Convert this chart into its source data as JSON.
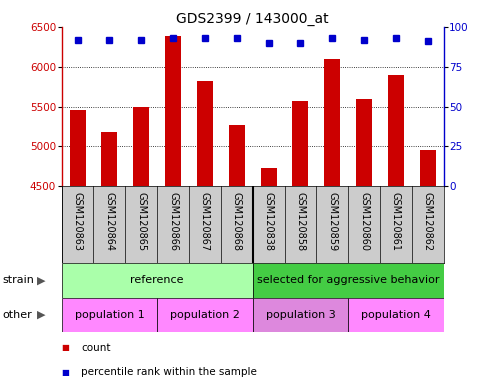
{
  "title": "GDS2399 / 143000_at",
  "samples": [
    "GSM120863",
    "GSM120864",
    "GSM120865",
    "GSM120866",
    "GSM120867",
    "GSM120868",
    "GSM120838",
    "GSM120858",
    "GSM120859",
    "GSM120860",
    "GSM120861",
    "GSM120862"
  ],
  "bar_values": [
    5460,
    5175,
    5490,
    6390,
    5820,
    5270,
    4730,
    5570,
    6100,
    5590,
    5900,
    4960
  ],
  "percentile_values": [
    92,
    92,
    92,
    93,
    93,
    93,
    90,
    90,
    93,
    92,
    93,
    91
  ],
  "bar_color": "#cc0000",
  "dot_color": "#0000cc",
  "ylim_left": [
    4500,
    6500
  ],
  "ylim_right": [
    0,
    100
  ],
  "yticks_left": [
    4500,
    5000,
    5500,
    6000,
    6500
  ],
  "yticks_right": [
    0,
    25,
    50,
    75,
    100
  ],
  "strain_groups": [
    {
      "label": "reference",
      "start": 0,
      "end": 6,
      "color": "#aaffaa"
    },
    {
      "label": "selected for aggressive behavior",
      "start": 6,
      "end": 12,
      "color": "#44cc44"
    }
  ],
  "other_groups": [
    {
      "label": "population 1",
      "start": 0,
      "end": 3,
      "color": "#ff88ff"
    },
    {
      "label": "population 2",
      "start": 3,
      "end": 6,
      "color": "#ff88ff"
    },
    {
      "label": "population 3",
      "start": 6,
      "end": 9,
      "color": "#dd88dd"
    },
    {
      "label": "population 4",
      "start": 9,
      "end": 12,
      "color": "#ff88ff"
    }
  ],
  "legend_count_color": "#cc0000",
  "legend_dot_color": "#0000cc",
  "tick_area_color": "#cccccc",
  "grid_linestyle": "dotted",
  "bar_width": 0.5,
  "separator_col": 6
}
